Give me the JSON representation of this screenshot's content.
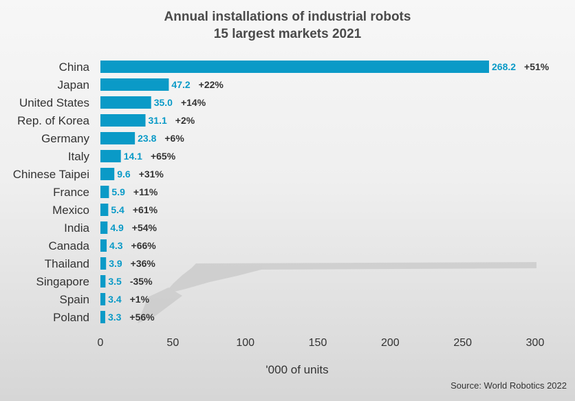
{
  "colors": {
    "bar": "#0a9ac7",
    "value_label": "#0a9ac7",
    "growth_label": "#333333",
    "category_label": "#333333",
    "tick_label": "#333333",
    "title": "#4a4a4a"
  },
  "chart_data": {
    "type": "bar",
    "orientation": "horizontal",
    "title": "Annual installations of industrial robots",
    "subtitle": "15 largest markets 2021",
    "xlabel": "'000 of units",
    "ylabel": "",
    "xlim": [
      0,
      300
    ],
    "x_ticks": [
      0,
      50,
      100,
      150,
      200,
      250,
      300
    ],
    "grid": false,
    "categories": [
      "China",
      "Japan",
      "United States",
      "Rep. of Korea",
      "Germany",
      "Italy",
      "Chinese Taipei",
      "France",
      "Mexico",
      "India",
      "Canada",
      "Thailand",
      "Singapore",
      "Spain",
      "Poland"
    ],
    "values": [
      268.2,
      47.2,
      35.0,
      31.1,
      23.8,
      14.1,
      9.6,
      5.9,
      5.4,
      4.9,
      4.3,
      3.9,
      3.5,
      3.4,
      3.3
    ],
    "value_labels": [
      "268.2",
      "47.2",
      "35.0",
      "31.1",
      "23.8",
      "14.1",
      "9.6",
      "5.9",
      "5.4",
      "4.9",
      "4.3",
      "3.9",
      "3.5",
      "3.4",
      "3.3"
    ],
    "growth_labels": [
      "+51%",
      "+22%",
      "+14%",
      "+2%",
      "+6%",
      "+65%",
      "+31%",
      "+11%",
      "+61%",
      "+54%",
      "+66%",
      "+36%",
      "-35%",
      "+1%",
      "+56%"
    ]
  },
  "source": "Source: World Robotics 2022"
}
